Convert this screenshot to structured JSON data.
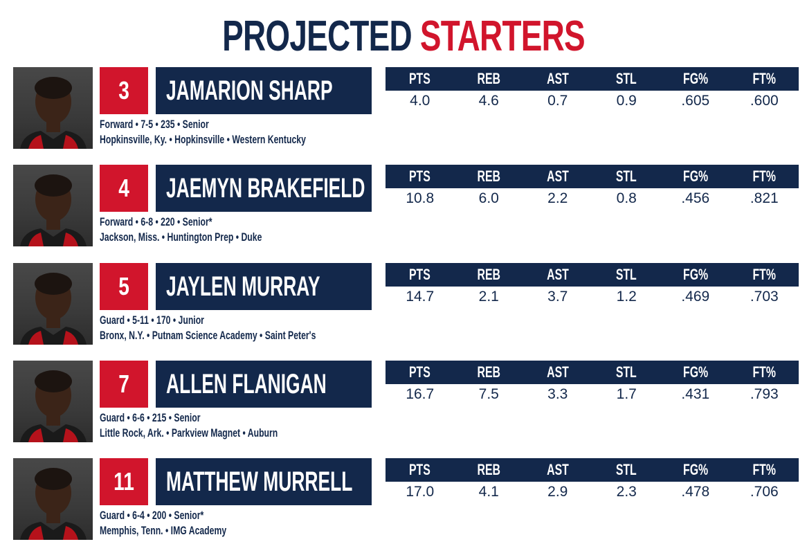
{
  "header": {
    "title_word1": "PROJECTED",
    "title_word2": "STARTERS"
  },
  "stat_labels": [
    "PTS",
    "REB",
    "AST",
    "STL",
    "FG%",
    "FT%"
  ],
  "players": [
    {
      "number": "3",
      "name": "JAMARION SHARP",
      "line1": "Forward • 7-5 • 235 • Senior",
      "line2": "Hopkinsville, Ky. • Hopkinsville • Western Kentucky",
      "stats": [
        "4.0",
        "4.6",
        "0.7",
        "0.9",
        ".605",
        ".600"
      ]
    },
    {
      "number": "4",
      "name": "JAEMYN BRAKEFIELD",
      "line1": "Forward • 6-8 • 220 • Senior*",
      "line2": "Jackson, Miss. • Huntington Prep • Duke",
      "stats": [
        "10.8",
        "6.0",
        "2.2",
        "0.8",
        ".456",
        ".821"
      ]
    },
    {
      "number": "5",
      "name": "JAYLEN MURRAY",
      "line1": "Guard • 5-11 • 170 • Junior",
      "line2": "Bronx, N.Y. • Putnam Science Academy • Saint Peter's",
      "stats": [
        "14.7",
        "2.1",
        "3.7",
        "1.2",
        ".469",
        ".703"
      ]
    },
    {
      "number": "7",
      "name": "ALLEN FLANIGAN",
      "line1": "Guard • 6-6 • 215 • Senior",
      "line2": "Little Rock, Ark. • Parkview Magnet • Auburn",
      "stats": [
        "16.7",
        "7.5",
        "3.3",
        "1.7",
        ".431",
        ".793"
      ]
    },
    {
      "number": "11",
      "name": "MATTHEW MURRELL",
      "line1": "Guard • 6-4 • 200 • Senior*",
      "line2": "Memphis, Tenn. • IMG Academy",
      "stats": [
        "17.0",
        "4.1",
        "2.9",
        "2.3",
        ".478",
        ".706"
      ]
    }
  ],
  "colors": {
    "navy": "#13284b",
    "red": "#d1152c"
  }
}
